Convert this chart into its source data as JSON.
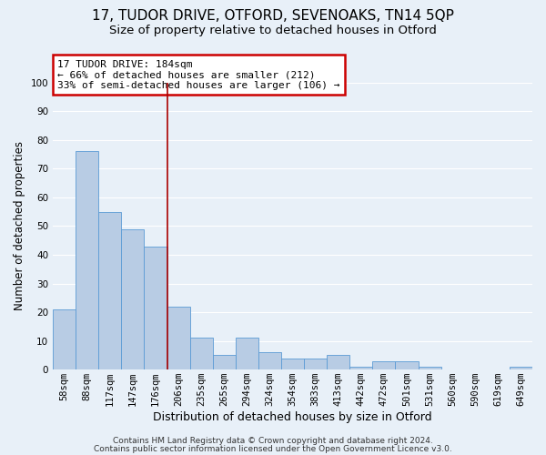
{
  "title1": "17, TUDOR DRIVE, OTFORD, SEVENOAKS, TN14 5QP",
  "title2": "Size of property relative to detached houses in Otford",
  "xlabel": "Distribution of detached houses by size in Otford",
  "ylabel": "Number of detached properties",
  "categories": [
    "58sqm",
    "88sqm",
    "117sqm",
    "147sqm",
    "176sqm",
    "206sqm",
    "235sqm",
    "265sqm",
    "294sqm",
    "324sqm",
    "354sqm",
    "383sqm",
    "413sqm",
    "442sqm",
    "472sqm",
    "501sqm",
    "531sqm",
    "560sqm",
    "590sqm",
    "619sqm",
    "649sqm"
  ],
  "values": [
    21,
    76,
    55,
    49,
    43,
    22,
    11,
    5,
    11,
    6,
    4,
    4,
    5,
    1,
    3,
    3,
    1,
    0,
    0,
    0,
    1
  ],
  "bar_color": "#b8cce4",
  "bar_edge_color": "#5b9bd5",
  "plot_bg_color": "#e8f0f8",
  "fig_bg_color": "#e8f0f8",
  "grid_color": "#ffffff",
  "vline_color": "#aa0000",
  "annotation_text": "17 TUDOR DRIVE: 184sqm\n← 66% of detached houses are smaller (212)\n33% of semi-detached houses are larger (106) →",
  "annotation_box_facecolor": "#ffffff",
  "annotation_box_edgecolor": "#cc0000",
  "ylim": [
    0,
    100
  ],
  "yticks": [
    0,
    10,
    20,
    30,
    40,
    50,
    60,
    70,
    80,
    90,
    100
  ],
  "footer1": "Contains HM Land Registry data © Crown copyright and database right 2024.",
  "footer2": "Contains public sector information licensed under the Open Government Licence v3.0.",
  "title1_fontsize": 11,
  "title2_fontsize": 9.5,
  "xlabel_fontsize": 9,
  "ylabel_fontsize": 8.5,
  "tick_fontsize": 7.5,
  "annotation_fontsize": 8,
  "footer_fontsize": 6.5
}
